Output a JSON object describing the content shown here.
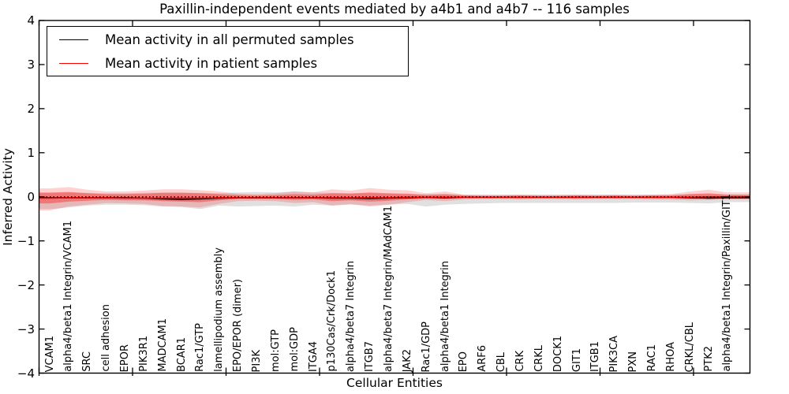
{
  "legend": {
    "items": [
      {
        "label": "Mean activity in all permuted samples",
        "color": "#000000"
      },
      {
        "label": "Mean activity in patient samples",
        "color": "#ff0000"
      }
    ]
  },
  "chart_data": {
    "type": "line",
    "title": "Paxillin-independent events mediated by a4b1 and a4b7 -- 116 samples",
    "xlabel": "Cellular Entities",
    "ylabel": "Inferred Activity",
    "ylim": [
      -4,
      4
    ],
    "grid": false,
    "legend_position": "upper-left",
    "yticks": {
      "values": [
        4,
        3,
        2,
        1,
        0,
        -1,
        -2,
        -3,
        -4
      ],
      "labels": [
        "4",
        "3",
        "2",
        "1",
        "0",
        "−1",
        "−2",
        "−3",
        "−4"
      ]
    },
    "categories": [
      "VCAM1",
      "alpha4/beta1 Integrin/VCAM1",
      "SRC",
      "cell adhesion",
      "EPOR",
      "PIK3R1",
      "MADCAM1",
      "BCAR1",
      "Rac1/GTP",
      "lamellipodium assembly",
      "EPO/EPOR (dimer)",
      "PI3K",
      "mol:GTP",
      "mol:GDP",
      "ITGA4",
      "p130Cas/Crk/Dock1",
      "alpha4/beta7 Integrin",
      "ITGB7",
      "alpha4/beta7 Integrin/MAdCAM1",
      "JAK2",
      "Rac1/GDP",
      "alpha4/beta1 Integrin",
      "EPO",
      "ARF6",
      "CBL",
      "CRK",
      "CRKL",
      "DOCK1",
      "GIT1",
      "ITGB1",
      "PIK3CA",
      "PXN",
      "RAC1",
      "RHOA",
      "CRKL/CBL",
      "PTK2",
      "alpha4/beta1 Integrin/Paxillin/GIT1"
    ],
    "zero_line": {
      "y": 0,
      "style": "dotted",
      "color": "#000000"
    },
    "series": [
      {
        "name": "Mean activity in all permuted samples",
        "color": "#000000",
        "values": [
          -0.02,
          -0.02,
          -0.02,
          -0.02,
          -0.02,
          -0.03,
          -0.05,
          -0.06,
          -0.05,
          -0.03,
          -0.02,
          -0.02,
          -0.02,
          -0.02,
          -0.02,
          -0.03,
          -0.03,
          -0.04,
          -0.03,
          -0.02,
          -0.01,
          -0.02,
          -0.01,
          -0.01,
          -0.01,
          -0.01,
          -0.01,
          -0.01,
          -0.01,
          -0.01,
          -0.01,
          -0.01,
          -0.01,
          -0.01,
          -0.02,
          -0.03,
          -0.02
        ]
      },
      {
        "name": "Mean activity in patient samples",
        "color": "#ff0000",
        "values": [
          -0.03,
          -0.02,
          -0.02,
          -0.02,
          -0.03,
          -0.03,
          -0.03,
          -0.03,
          -0.03,
          -0.02,
          -0.02,
          -0.02,
          -0.02,
          -0.02,
          -0.02,
          -0.02,
          -0.02,
          -0.02,
          -0.02,
          -0.01,
          -0.01,
          -0.01,
          -0.01,
          -0.01,
          -0.01,
          -0.01,
          -0.01,
          -0.01,
          -0.01,
          -0.01,
          -0.01,
          -0.01,
          -0.01,
          -0.01,
          -0.01,
          0.0,
          0.0
        ]
      }
    ],
    "bands": [
      {
        "name": "permuted-samples-range-band",
        "color": "#bbbbbb",
        "opacity": 0.45,
        "upper": [
          0.08,
          0.1,
          0.09,
          0.08,
          0.08,
          0.09,
          0.1,
          0.1,
          0.09,
          0.08,
          0.1,
          0.11,
          0.1,
          0.12,
          0.1,
          0.09,
          0.08,
          0.08,
          0.07,
          0.06,
          0.06,
          0.06,
          0.05,
          0.05,
          0.05,
          0.05,
          0.05,
          0.05,
          0.05,
          0.05,
          0.05,
          0.05,
          0.05,
          0.05,
          0.06,
          0.06,
          0.05
        ],
        "lower": [
          -0.28,
          -0.24,
          -0.2,
          -0.18,
          -0.18,
          -0.19,
          -0.22,
          -0.23,
          -0.28,
          -0.2,
          -0.22,
          -0.21,
          -0.2,
          -0.22,
          -0.18,
          -0.2,
          -0.18,
          -0.2,
          -0.18,
          -0.16,
          -0.22,
          -0.18,
          -0.16,
          -0.15,
          -0.14,
          -0.14,
          -0.14,
          -0.14,
          -0.14,
          -0.14,
          -0.14,
          -0.13,
          -0.13,
          -0.13,
          -0.14,
          -0.15,
          -0.12
        ]
      },
      {
        "name": "patient-samples-outer-band",
        "color": "#ff0000",
        "opacity": 0.18,
        "upper": [
          0.19,
          0.22,
          0.16,
          0.12,
          0.12,
          0.14,
          0.17,
          0.17,
          0.15,
          0.12,
          0.07,
          0.06,
          0.08,
          0.12,
          0.1,
          0.17,
          0.14,
          0.2,
          0.16,
          0.15,
          0.08,
          0.12,
          0.05,
          0.04,
          0.04,
          0.05,
          0.04,
          0.04,
          0.05,
          0.04,
          0.05,
          0.04,
          0.05,
          0.06,
          0.12,
          0.16,
          0.1
        ],
        "lower": [
          -0.31,
          -0.22,
          -0.18,
          -0.14,
          -0.15,
          -0.16,
          -0.21,
          -0.22,
          -0.24,
          -0.16,
          -0.1,
          -0.09,
          -0.1,
          -0.14,
          -0.12,
          -0.2,
          -0.16,
          -0.22,
          -0.18,
          -0.12,
          -0.07,
          -0.1,
          -0.06,
          -0.05,
          -0.05,
          -0.06,
          -0.05,
          -0.05,
          -0.06,
          -0.05,
          -0.05,
          -0.05,
          -0.06,
          -0.06,
          -0.08,
          -0.07,
          -0.06
        ]
      },
      {
        "name": "patient-samples-inner-band",
        "color": "#ff0000",
        "opacity": 0.35,
        "upper": [
          0.1,
          0.11,
          0.08,
          0.06,
          0.06,
          0.07,
          0.09,
          0.09,
          0.08,
          0.06,
          0.04,
          0.03,
          0.04,
          0.06,
          0.05,
          0.08,
          0.07,
          0.1,
          0.08,
          0.07,
          0.04,
          0.06,
          0.03,
          0.02,
          0.02,
          0.03,
          0.02,
          0.02,
          0.03,
          0.02,
          0.03,
          0.02,
          0.03,
          0.03,
          0.06,
          0.08,
          0.05
        ],
        "lower": [
          -0.15,
          -0.11,
          -0.09,
          -0.07,
          -0.08,
          -0.08,
          -0.1,
          -0.11,
          -0.12,
          -0.08,
          -0.05,
          -0.05,
          -0.05,
          -0.07,
          -0.06,
          -0.1,
          -0.08,
          -0.11,
          -0.09,
          -0.06,
          -0.04,
          -0.05,
          -0.03,
          -0.03,
          -0.03,
          -0.03,
          -0.03,
          -0.03,
          -0.03,
          -0.03,
          -0.03,
          -0.03,
          -0.03,
          -0.03,
          -0.04,
          -0.04,
          -0.03
        ]
      }
    ]
  }
}
